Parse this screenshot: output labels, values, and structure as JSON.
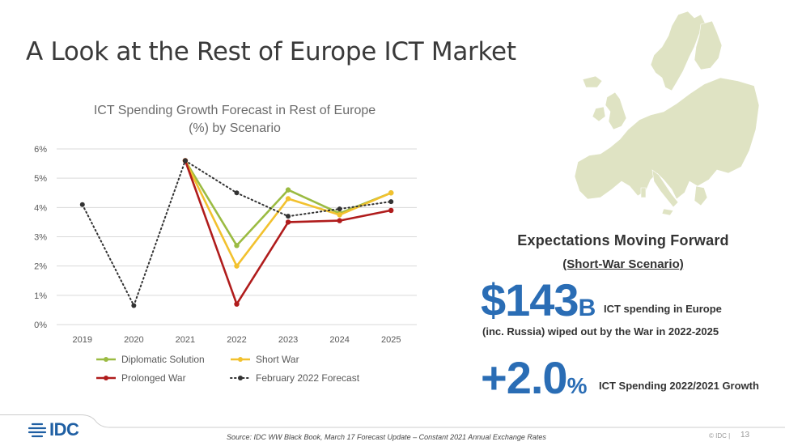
{
  "slide": {
    "title": "A Look at the Rest of Europe ICT Market"
  },
  "chart_data": {
    "type": "line",
    "title": "ICT Spending Growth Forecast in Rest of Europe (%) by Scenario",
    "title_lines": [
      "ICT Spending Growth Forecast in Rest of Europe",
      "(%) by Scenario"
    ],
    "categories": [
      "2019",
      "2020",
      "2021",
      "2022",
      "2023",
      "2024",
      "2025"
    ],
    "y_ticks": [
      "0%",
      "1%",
      "2%",
      "3%",
      "4%",
      "5%",
      "6%"
    ],
    "ylim": [
      0,
      6
    ],
    "grid": true,
    "legend_position": "bottom",
    "series": [
      {
        "name": "Diplomatic Solution",
        "color": "#9bbb42",
        "style": "solid",
        "values": [
          null,
          null,
          5.6,
          2.7,
          4.6,
          3.8,
          4.5
        ]
      },
      {
        "name": "Short War",
        "color": "#f2c12e",
        "style": "solid",
        "values": [
          null,
          null,
          5.6,
          2.0,
          4.3,
          3.75,
          4.5
        ]
      },
      {
        "name": "Prolonged War",
        "color": "#b01c1c",
        "style": "solid",
        "values": [
          null,
          null,
          5.6,
          0.7,
          3.5,
          3.55,
          3.9
        ]
      },
      {
        "name": "February 2022 Forecast",
        "color": "#333333",
        "style": "dotted",
        "values": [
          4.1,
          0.65,
          5.6,
          4.5,
          3.7,
          3.95,
          4.2
        ]
      }
    ]
  },
  "expectations": {
    "heading": "Expectations Moving Forward",
    "subheading": "(Short-War Scenario)",
    "stat1_value": "$143",
    "stat1_unit": "B",
    "stat1_text_line1": "ICT spending in Europe",
    "stat1_text_line2": "(inc. Russia) wiped out by the War in 2022-2025",
    "stat2_value": "+2.0",
    "stat2_unit": "%",
    "stat2_text": "ICT Spending 2022/2021 Growth"
  },
  "footer": {
    "logo": "IDC",
    "source": "Source: IDC WW Black Book, March 17 Forecast Update – Constant 2021 Annual Exchange Rates",
    "copyright": "© IDC |",
    "page": "13"
  },
  "colors": {
    "accent": "#2a6db5",
    "map": "#dfe3c3",
    "gridline": "#d9d9d9"
  }
}
